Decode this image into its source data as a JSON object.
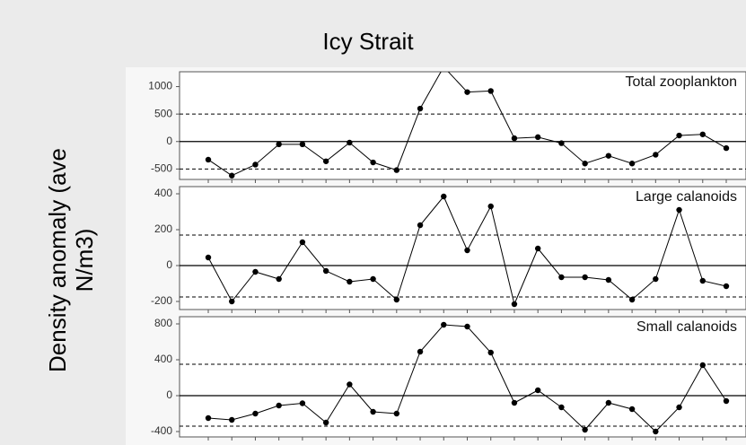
{
  "title": "Icy Strait",
  "ylabel": "Density anomaly (ave N/m3)",
  "chart_data": [
    {
      "type": "line",
      "annotation": "Total zooplankton",
      "color": "#000000",
      "values": [
        -330,
        -620,
        -420,
        -50,
        -50,
        -360,
        -20,
        -380,
        -520,
        600,
        1360,
        900,
        920,
        60,
        80,
        -30,
        -400,
        -260,
        -400,
        -240,
        110,
        130,
        -120
      ],
      "ylim": [
        -690,
        1270
      ],
      "yticks": [
        -500,
        0,
        500,
        1000
      ],
      "reference_lines": [
        {
          "value": 0,
          "style": "solid"
        },
        {
          "value": 500,
          "style": "dashed"
        },
        {
          "value": -500,
          "style": "dashed"
        }
      ]
    },
    {
      "type": "line",
      "annotation": "Large calanoids",
      "color": "#000000",
      "values": [
        45,
        -200,
        -35,
        -75,
        130,
        -30,
        -90,
        -75,
        -190,
        225,
        385,
        85,
        330,
        -215,
        95,
        -65,
        -65,
        -80,
        -190,
        -75,
        310,
        -85,
        -115
      ],
      "ylim": [
        -245,
        440
      ],
      "yticks": [
        -200,
        0,
        200,
        400
      ],
      "reference_lines": [
        {
          "value": 0,
          "style": "solid"
        },
        {
          "value": 170,
          "style": "dashed"
        },
        {
          "value": -175,
          "style": "dashed"
        }
      ]
    },
    {
      "type": "line",
      "annotation": "Small calanoids",
      "color": "#000000",
      "values": [
        -250,
        -270,
        -200,
        -110,
        -85,
        -300,
        125,
        -180,
        -200,
        490,
        790,
        770,
        480,
        -80,
        60,
        -130,
        -380,
        -80,
        -150,
        -400,
        -130,
        340,
        -60
      ],
      "ylim": [
        -460,
        880
      ],
      "yticks": [
        -400,
        0,
        400,
        800
      ],
      "reference_lines": [
        {
          "value": 0,
          "style": "solid"
        },
        {
          "value": 350,
          "style": "dashed"
        },
        {
          "value": -340,
          "style": "dashed"
        }
      ]
    }
  ]
}
